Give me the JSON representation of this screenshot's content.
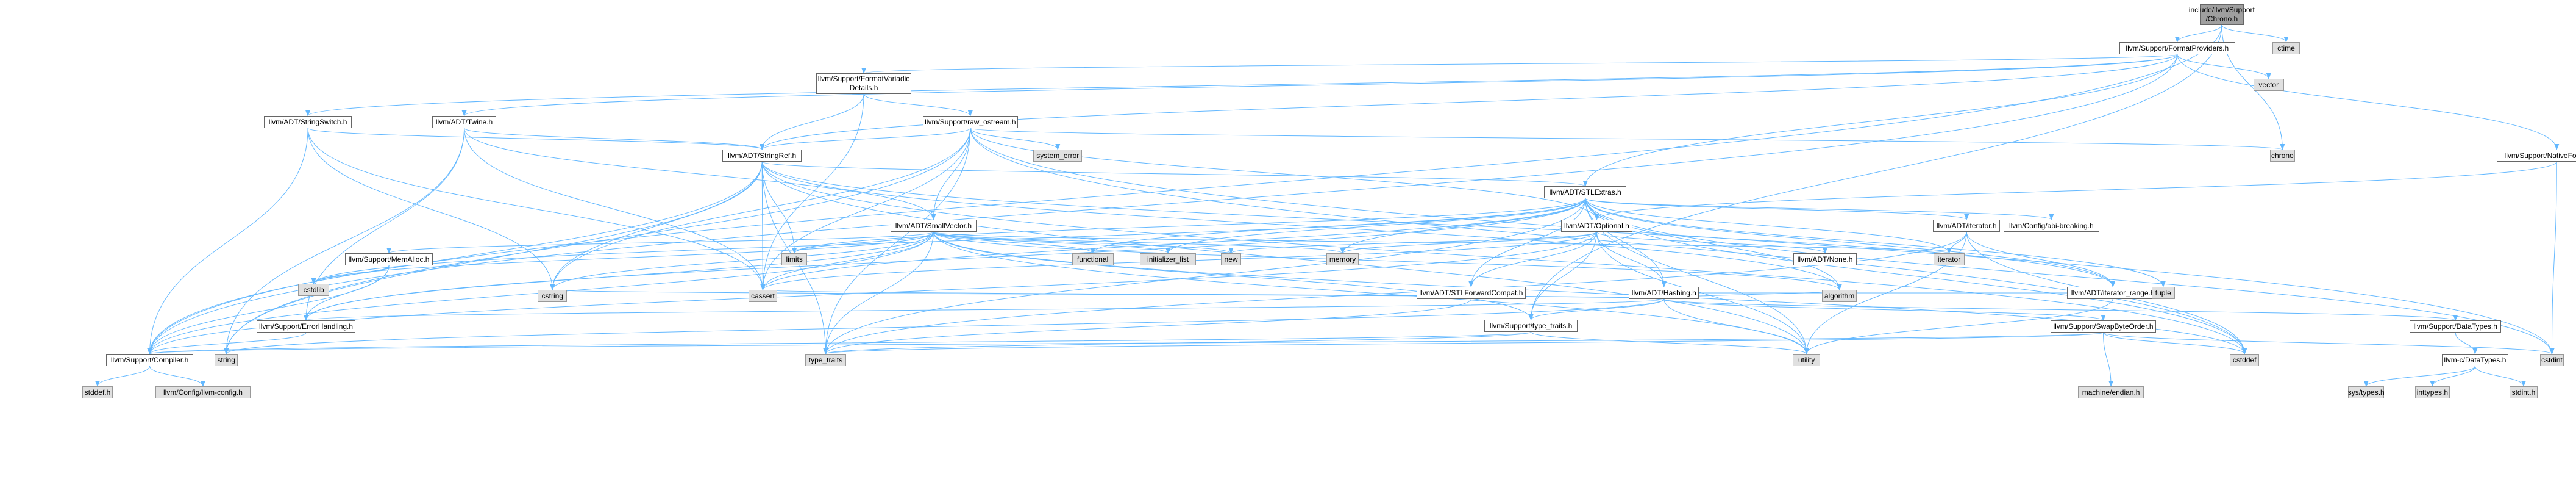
{
  "graph": {
    "edge_color": "#63b8ff",
    "root_color": "#9f9f9f",
    "system_color": "#e0e0e0",
    "nodes": [
      {
        "id": "root",
        "label": "include/llvm/Support\n/Chrono.h",
        "kind": "root"
      },
      {
        "id": "ctime",
        "label": "ctime",
        "kind": "system"
      },
      {
        "id": "fmtprov",
        "label": "llvm/Support/FormatProviders.h",
        "kind": "local"
      },
      {
        "id": "fmtvar",
        "label": "llvm/Support/FormatVariadic\nDetails.h",
        "kind": "local"
      },
      {
        "id": "vector",
        "label": "vector",
        "kind": "system"
      },
      {
        "id": "strswitch",
        "label": "llvm/ADT/StringSwitch.h",
        "kind": "local"
      },
      {
        "id": "twine",
        "label": "llvm/ADT/Twine.h",
        "kind": "local"
      },
      {
        "id": "rawos",
        "label": "llvm/Support/raw_ostream.h",
        "kind": "local"
      },
      {
        "id": "syserr",
        "label": "system_error",
        "kind": "system"
      },
      {
        "id": "chrono",
        "label": "chrono",
        "kind": "system"
      },
      {
        "id": "stringref",
        "label": "llvm/ADT/StringRef.h",
        "kind": "local"
      },
      {
        "id": "natfmt",
        "label": "llvm/Support/NativeFormatting.h",
        "kind": "local"
      },
      {
        "id": "stlextras",
        "label": "llvm/ADT/STLExtras.h",
        "kind": "local"
      },
      {
        "id": "smallvec",
        "label": "llvm/ADT/SmallVector.h",
        "kind": "local"
      },
      {
        "id": "optional",
        "label": "llvm/ADT/Optional.h",
        "kind": "local"
      },
      {
        "id": "iterator",
        "label": "llvm/ADT/iterator.h",
        "kind": "local"
      },
      {
        "id": "abibreak",
        "label": "llvm/Config/abi-breaking.h",
        "kind": "local"
      },
      {
        "id": "memalloc",
        "label": "llvm/Support/MemAlloc.h",
        "kind": "local"
      },
      {
        "id": "functional",
        "label": "functional",
        "kind": "system"
      },
      {
        "id": "initlist",
        "label": "initializer_list",
        "kind": "system"
      },
      {
        "id": "new",
        "label": "new",
        "kind": "system"
      },
      {
        "id": "memory",
        "label": "memory",
        "kind": "system"
      },
      {
        "id": "iteratorsys",
        "label": "iterator",
        "kind": "system"
      },
      {
        "id": "limits",
        "label": "limits",
        "kind": "system"
      },
      {
        "id": "stlfwd",
        "label": "llvm/ADT/STLForwardCompat.h",
        "kind": "local"
      },
      {
        "id": "hashing",
        "label": "llvm/ADT/Hashing.h",
        "kind": "local"
      },
      {
        "id": "none",
        "label": "llvm/ADT/None.h",
        "kind": "local"
      },
      {
        "id": "itrange",
        "label": "llvm/ADT/iterator_range.h",
        "kind": "local"
      },
      {
        "id": "errh",
        "label": "llvm/Support/ErrorHandling.h",
        "kind": "local"
      },
      {
        "id": "cstdlib",
        "label": "cstdlib",
        "kind": "system"
      },
      {
        "id": "cstring",
        "label": "cstring",
        "kind": "system"
      },
      {
        "id": "cassert",
        "label": "cassert",
        "kind": "system"
      },
      {
        "id": "algorithm",
        "label": "algorithm",
        "kind": "system"
      },
      {
        "id": "tuple",
        "label": "tuple",
        "kind": "system"
      },
      {
        "id": "typetraits",
        "label": "llvm/Support/type_traits.h",
        "kind": "local"
      },
      {
        "id": "swapbyte",
        "label": "llvm/Support/SwapByteOrder.h",
        "kind": "local"
      },
      {
        "id": "datatypes",
        "label": "llvm/Support/DataTypes.h",
        "kind": "local"
      },
      {
        "id": "compiler",
        "label": "llvm/Support/Compiler.h",
        "kind": "local"
      },
      {
        "id": "string",
        "label": "string",
        "kind": "system"
      },
      {
        "id": "type_traits",
        "label": "type_traits",
        "kind": "system"
      },
      {
        "id": "utility",
        "label": "utility",
        "kind": "system"
      },
      {
        "id": "machendian",
        "label": "machine/endian.h",
        "kind": "system"
      },
      {
        "id": "cstddef",
        "label": "cstddef",
        "kind": "system"
      },
      {
        "id": "cstdint",
        "label": "cstdint",
        "kind": "system"
      },
      {
        "id": "cdatatypes",
        "label": "llvm-c/DataTypes.h",
        "kind": "local"
      },
      {
        "id": "stddef",
        "label": "stddef.h",
        "kind": "system"
      },
      {
        "id": "llvmconfig",
        "label": "llvm/Config/llvm-config.h",
        "kind": "system"
      },
      {
        "id": "systypes",
        "label": "sys/types.h",
        "kind": "system"
      },
      {
        "id": "inttypes",
        "label": "inttypes.h",
        "kind": "system"
      },
      {
        "id": "stdint",
        "label": "stdint.h",
        "kind": "system"
      }
    ],
    "edges": [
      [
        "root",
        "ctime"
      ],
      [
        "root",
        "fmtprov"
      ],
      [
        "root",
        "chrono"
      ],
      [
        "root",
        "compiler"
      ],
      [
        "root",
        "typetraits"
      ],
      [
        "fmtprov",
        "fmtvar"
      ],
      [
        "fmtprov",
        "vector"
      ],
      [
        "fmtprov",
        "strswitch"
      ],
      [
        "fmtprov",
        "twine"
      ],
      [
        "fmtprov",
        "natfmt"
      ],
      [
        "fmtprov",
        "stlextras"
      ],
      [
        "fmtprov",
        "stringref"
      ],
      [
        "fmtprov",
        "compiler"
      ],
      [
        "fmtvar",
        "rawos"
      ],
      [
        "fmtvar",
        "stringref"
      ],
      [
        "fmtvar",
        "cassert"
      ],
      [
        "strswitch",
        "stringref"
      ],
      [
        "strswitch",
        "compiler"
      ],
      [
        "strswitch",
        "cassert"
      ],
      [
        "strswitch",
        "cstring"
      ],
      [
        "twine",
        "smallvec"
      ],
      [
        "twine",
        "stringref"
      ],
      [
        "twine",
        "errh"
      ],
      [
        "twine",
        "cassert"
      ],
      [
        "twine",
        "string"
      ],
      [
        "rawos",
        "syserr"
      ],
      [
        "rawos",
        "chrono"
      ],
      [
        "rawos",
        "stringref"
      ],
      [
        "rawos",
        "smallvec"
      ],
      [
        "rawos",
        "cassert"
      ],
      [
        "rawos",
        "cstddef"
      ],
      [
        "rawos",
        "cstdint"
      ],
      [
        "rawos",
        "cstring"
      ],
      [
        "rawos",
        "string"
      ],
      [
        "rawos",
        "type_traits"
      ],
      [
        "rawos",
        "optional"
      ],
      [
        "stringref",
        "stlextras"
      ],
      [
        "stringref",
        "compiler"
      ],
      [
        "stringref",
        "algorithm"
      ],
      [
        "stringref",
        "cassert"
      ],
      [
        "stringref",
        "cstddef"
      ],
      [
        "stringref",
        "cstring"
      ],
      [
        "stringref",
        "limits"
      ],
      [
        "stringref",
        "string"
      ],
      [
        "stringref",
        "type_traits"
      ],
      [
        "stringref",
        "utility"
      ],
      [
        "stringref",
        "itrange"
      ],
      [
        "natfmt",
        "optional"
      ],
      [
        "natfmt",
        "cstdint"
      ],
      [
        "stlextras",
        "optional"
      ],
      [
        "stlextras",
        "stlfwd"
      ],
      [
        "stlextras",
        "iterator"
      ],
      [
        "stlextras",
        "itrange"
      ],
      [
        "stlextras",
        "abibreak"
      ],
      [
        "stlextras",
        "errh"
      ],
      [
        "stlextras",
        "algorithm"
      ],
      [
        "stlextras",
        "cassert"
      ],
      [
        "stlextras",
        "cstddef"
      ],
      [
        "stlextras",
        "cstdint"
      ],
      [
        "stlextras",
        "cstdlib"
      ],
      [
        "stlextras",
        "functional"
      ],
      [
        "stlextras",
        "initlist"
      ],
      [
        "stlextras",
        "iteratorsys"
      ],
      [
        "stlextras",
        "limits"
      ],
      [
        "stlextras",
        "memory"
      ],
      [
        "stlextras",
        "tuple"
      ],
      [
        "stlextras",
        "type_traits"
      ],
      [
        "stlextras",
        "utility"
      ],
      [
        "stlextras",
        "hashing"
      ],
      [
        "smallvec",
        "compiler"
      ],
      [
        "smallvec",
        "memalloc"
      ],
      [
        "smallvec",
        "typetraits"
      ],
      [
        "smallvec",
        "algorithm"
      ],
      [
        "smallvec",
        "cassert"
      ],
      [
        "smallvec",
        "cstddef"
      ],
      [
        "smallvec",
        "cstdlib"
      ],
      [
        "smallvec",
        "cstring"
      ],
      [
        "smallvec",
        "functional"
      ],
      [
        "smallvec",
        "initlist"
      ],
      [
        "smallvec",
        "iteratorsys"
      ],
      [
        "smallvec",
        "limits"
      ],
      [
        "smallvec",
        "memory"
      ],
      [
        "smallvec",
        "new"
      ],
      [
        "smallvec",
        "type_traits"
      ],
      [
        "smallvec",
        "utility"
      ],
      [
        "smallvec",
        "errh"
      ],
      [
        "optional",
        "hashing"
      ],
      [
        "optional",
        "none"
      ],
      [
        "optional",
        "stlfwd"
      ],
      [
        "optional",
        "compiler"
      ],
      [
        "optional",
        "typetraits"
      ],
      [
        "optional",
        "cassert"
      ],
      [
        "optional",
        "memory"
      ],
      [
        "optional",
        "new"
      ],
      [
        "optional",
        "utility"
      ],
      [
        "hashing",
        "errh"
      ],
      [
        "hashing",
        "datatypes"
      ],
      [
        "hashing",
        "swapbyte"
      ],
      [
        "hashing",
        "typetraits"
      ],
      [
        "hashing",
        "algorithm"
      ],
      [
        "hashing",
        "cassert"
      ],
      [
        "hashing",
        "cstring"
      ],
      [
        "hashing",
        "string"
      ],
      [
        "hashing",
        "tuple"
      ],
      [
        "hashing",
        "utility"
      ],
      [
        "iterator",
        "itrange"
      ],
      [
        "iterator",
        "cstddef"
      ],
      [
        "iterator",
        "iteratorsys"
      ],
      [
        "iterator",
        "type_traits"
      ],
      [
        "iterator",
        "utility"
      ],
      [
        "itrange",
        "utility"
      ],
      [
        "memalloc",
        "compiler"
      ],
      [
        "memalloc",
        "errh"
      ],
      [
        "memalloc",
        "cstdlib"
      ],
      [
        "errh",
        "compiler"
      ],
      [
        "stlfwd",
        "type_traits"
      ],
      [
        "typetraits",
        "compiler"
      ],
      [
        "typetraits",
        "type_traits"
      ],
      [
        "typetraits",
        "utility"
      ],
      [
        "swapbyte",
        "compiler"
      ],
      [
        "swapbyte",
        "cstddef"
      ],
      [
        "swapbyte",
        "cstdint"
      ],
      [
        "swapbyte",
        "type_traits"
      ],
      [
        "swapbyte",
        "machendian"
      ],
      [
        "datatypes",
        "cdatatypes"
      ],
      [
        "cdatatypes",
        "systypes"
      ],
      [
        "cdatatypes",
        "inttypes"
      ],
      [
        "cdatatypes",
        "stdint"
      ],
      [
        "compiler",
        "stddef"
      ],
      [
        "compiler",
        "llvmconfig"
      ]
    ]
  }
}
